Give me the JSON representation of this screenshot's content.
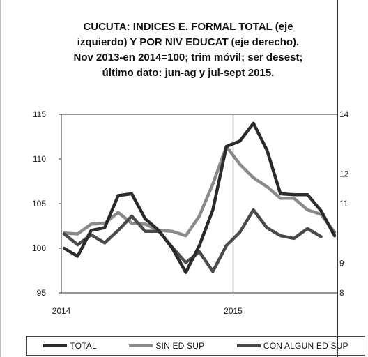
{
  "title_lines": [
    "CUCUTA: INDICES E. FORMAL TOTAL (eje",
    "izquierdo) Y POR NIV EDUCAT (eje derecho).",
    "Nov 2013-en 2014=100; trim móvil; ser desest;",
    "último dato: jun-ag y jul-sept 2015."
  ],
  "chart_data": {
    "type": "line",
    "title": "CUCUTA: INDICES E. FORMAL TOTAL (eje izquierdo) Y POR NIV EDUCAT (eje derecho). Nov 2013-en 2014=100; trim móvil; ser desest; último dato: jun-ag y jul-sept 2015.",
    "x_ticks": [
      "2014",
      "2015"
    ],
    "x_tick_index": [
      0,
      13
    ],
    "left_axis": {
      "ylim": [
        95,
        115
      ],
      "ticks": [
        "115",
        "110",
        "105",
        "100",
        "95"
      ]
    },
    "right_axis": {
      "ylim": [
        80,
        140
      ],
      "ticks_visible": [
        "14",
        "12",
        "11",
        "9",
        "8"
      ]
    },
    "grid": false,
    "legend_position": "bottom",
    "series": [
      {
        "name": "TOTAL",
        "color": "#2b2b2b",
        "axis": "left",
        "values": [
          100.0,
          99.1,
          102.0,
          102.3,
          105.9,
          106.1,
          103.3,
          102.0,
          100.0,
          97.3,
          100.3,
          104.3,
          111.4,
          112.0,
          114.0,
          111.0,
          106.1,
          106.0,
          106.0,
          104.2,
          101.4
        ]
      },
      {
        "name": "SIN ED SUP",
        "color": "#8a8a8a",
        "axis": "left",
        "values": [
          101.7,
          101.6,
          102.7,
          102.8,
          104.0,
          102.8,
          102.7,
          102.0,
          101.9,
          101.4,
          103.6,
          107.2,
          111.4,
          109.4,
          107.9,
          106.9,
          105.6,
          105.6,
          104.3,
          103.8,
          101.8
        ]
      },
      {
        "name": "CON ALGUN ED SUP",
        "color": "#4a4a4a",
        "axis": "left",
        "values": [
          101.6,
          100.4,
          101.5,
          100.6,
          102.0,
          103.6,
          101.9,
          101.9,
          100.1,
          98.4,
          99.6,
          97.4,
          100.3,
          101.8,
          104.3,
          102.3,
          101.4,
          101.1,
          102.2,
          101.3
        ]
      }
    ]
  },
  "legend": {
    "total": "TOTAL",
    "sin_ed_sup": "SIN ED SUP",
    "con_algun_ed_sup": "CON ALGUN ED SUP"
  }
}
